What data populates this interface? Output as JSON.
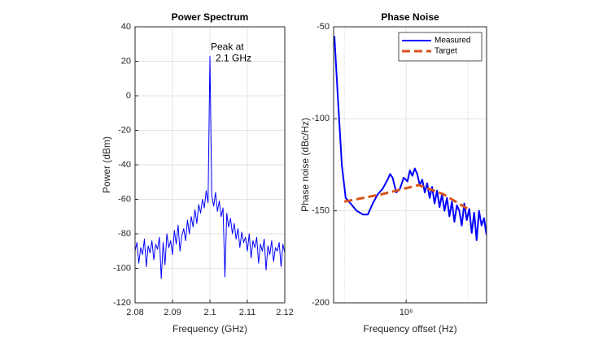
{
  "chart_data": [
    {
      "type": "line",
      "title": "Power Spectrum",
      "xlabel": "Frequency (GHz)",
      "ylabel": "Power (dBm)",
      "annotation": [
        "Peak at",
        "2.1 GHz"
      ],
      "color": "#0000ff",
      "x": [
        2.08,
        2.0805,
        2.081,
        2.0815,
        2.082,
        2.0825,
        2.083,
        2.0835,
        2.084,
        2.0845,
        2.085,
        2.0855,
        2.086,
        2.0865,
        2.087,
        2.0875,
        2.088,
        2.0885,
        2.089,
        2.0895,
        2.09,
        2.0905,
        2.091,
        2.0915,
        2.092,
        2.0925,
        2.093,
        2.0935,
        2.094,
        2.0945,
        2.095,
        2.0955,
        2.096,
        2.0965,
        2.097,
        2.0975,
        2.098,
        2.0985,
        2.099,
        2.0995,
        2.1,
        2.1005,
        2.101,
        2.1015,
        2.102,
        2.1025,
        2.103,
        2.1035,
        2.104,
        2.1045,
        2.105,
        2.1055,
        2.106,
        2.1065,
        2.107,
        2.1075,
        2.108,
        2.1085,
        2.109,
        2.1095,
        2.11,
        2.1105,
        2.111,
        2.1115,
        2.112,
        2.1125,
        2.113,
        2.1135,
        2.114,
        2.1145,
        2.115,
        2.1155,
        2.116,
        2.1165,
        2.117,
        2.1175,
        2.118,
        2.1185,
        2.119,
        2.1195,
        2.12
      ],
      "values": [
        -90,
        -85,
        -97,
        -88,
        -92,
        -83,
        -99,
        -87,
        -91,
        -84,
        -95,
        -86,
        -89,
        -82,
        -106,
        -85,
        -98,
        -80,
        -88,
        -84,
        -92,
        -78,
        -86,
        -75,
        -90,
        -81,
        -77,
        -84,
        -72,
        -80,
        -70,
        -76,
        -66,
        -74,
        -63,
        -68,
        -60,
        -65,
        -55,
        -62,
        23,
        -58,
        -64,
        -56,
        -67,
        -61,
        -70,
        -65,
        -105,
        -68,
        -76,
        -71,
        -80,
        -74,
        -83,
        -77,
        -88,
        -79,
        -85,
        -82,
        -90,
        -80,
        -94,
        -84,
        -88,
        -82,
        -97,
        -86,
        -90,
        -83,
        -101,
        -87,
        -92,
        -84,
        -96,
        -88,
        -90,
        -85,
        -99,
        -86,
        -91
      ],
      "xlim": [
        2.08,
        2.12
      ],
      "xticks": [
        2.08,
        2.09,
        2.1,
        2.11,
        2.12
      ],
      "ylim": [
        -120,
        40
      ],
      "yticks": [
        -120,
        -100,
        -80,
        -60,
        -40,
        -20,
        0,
        20,
        40
      ],
      "grid": true
    },
    {
      "type": "line",
      "title": "Phase Noise",
      "xlabel": "Frequency offset (Hz)",
      "ylabel": "Phase noise (dBc/Hz)",
      "xscale": "log",
      "legend": "northeast",
      "series": [
        {
          "name": "Measured",
          "color": "#0000ff",
          "dash": false,
          "x": [
            69000,
            79000,
            91000,
            105000,
            126000,
            158000,
            200000,
            240000,
            288000,
            347000,
            417000,
            501000,
            550000,
            603000,
            692000,
            794000,
            912000,
            1050000,
            1150000,
            1260000,
            1380000,
            1510000,
            1660000,
            1820000,
            2000000,
            2190000,
            2400000,
            2630000,
            2880000,
            3160000,
            3470000,
            3800000,
            4170000,
            4570000,
            5010000,
            5500000,
            6030000,
            6610000,
            7240000,
            7940000,
            8710000,
            9550000,
            10500000,
            11500000,
            12600000,
            13800000,
            15100000,
            16600000,
            18200000,
            19900000
          ],
          "values": [
            -55,
            -90,
            -125,
            -143,
            -146,
            -150,
            -152,
            -152,
            -146,
            -141,
            -138,
            -133,
            -130,
            -132,
            -140,
            -138,
            -132,
            -134,
            -128,
            -131,
            -127,
            -130,
            -136,
            -133,
            -140,
            -135,
            -143,
            -137,
            -146,
            -139,
            -148,
            -141,
            -150,
            -143,
            -153,
            -145,
            -156,
            -147,
            -150,
            -158,
            -146,
            -155,
            -149,
            -162,
            -151,
            -166,
            -150,
            -158,
            -154,
            -163
          ]
        },
        {
          "name": "Target",
          "color": "#d95319",
          "dash": true,
          "x": [
            100000,
            400000,
            1600000,
            4000000,
            10000000
          ],
          "values": [
            -145,
            -141,
            -136,
            -141,
            -149
          ]
        }
      ],
      "xlim": [
        67000,
        20000000
      ],
      "xticks": [
        {
          "value": 1000000,
          "label": "10⁶"
        }
      ],
      "xminor": [
        100000,
        10000000
      ],
      "ylim": [
        -200,
        -50
      ],
      "yticks": [
        -200,
        -150,
        -100,
        -50
      ],
      "grid": true
    }
  ]
}
